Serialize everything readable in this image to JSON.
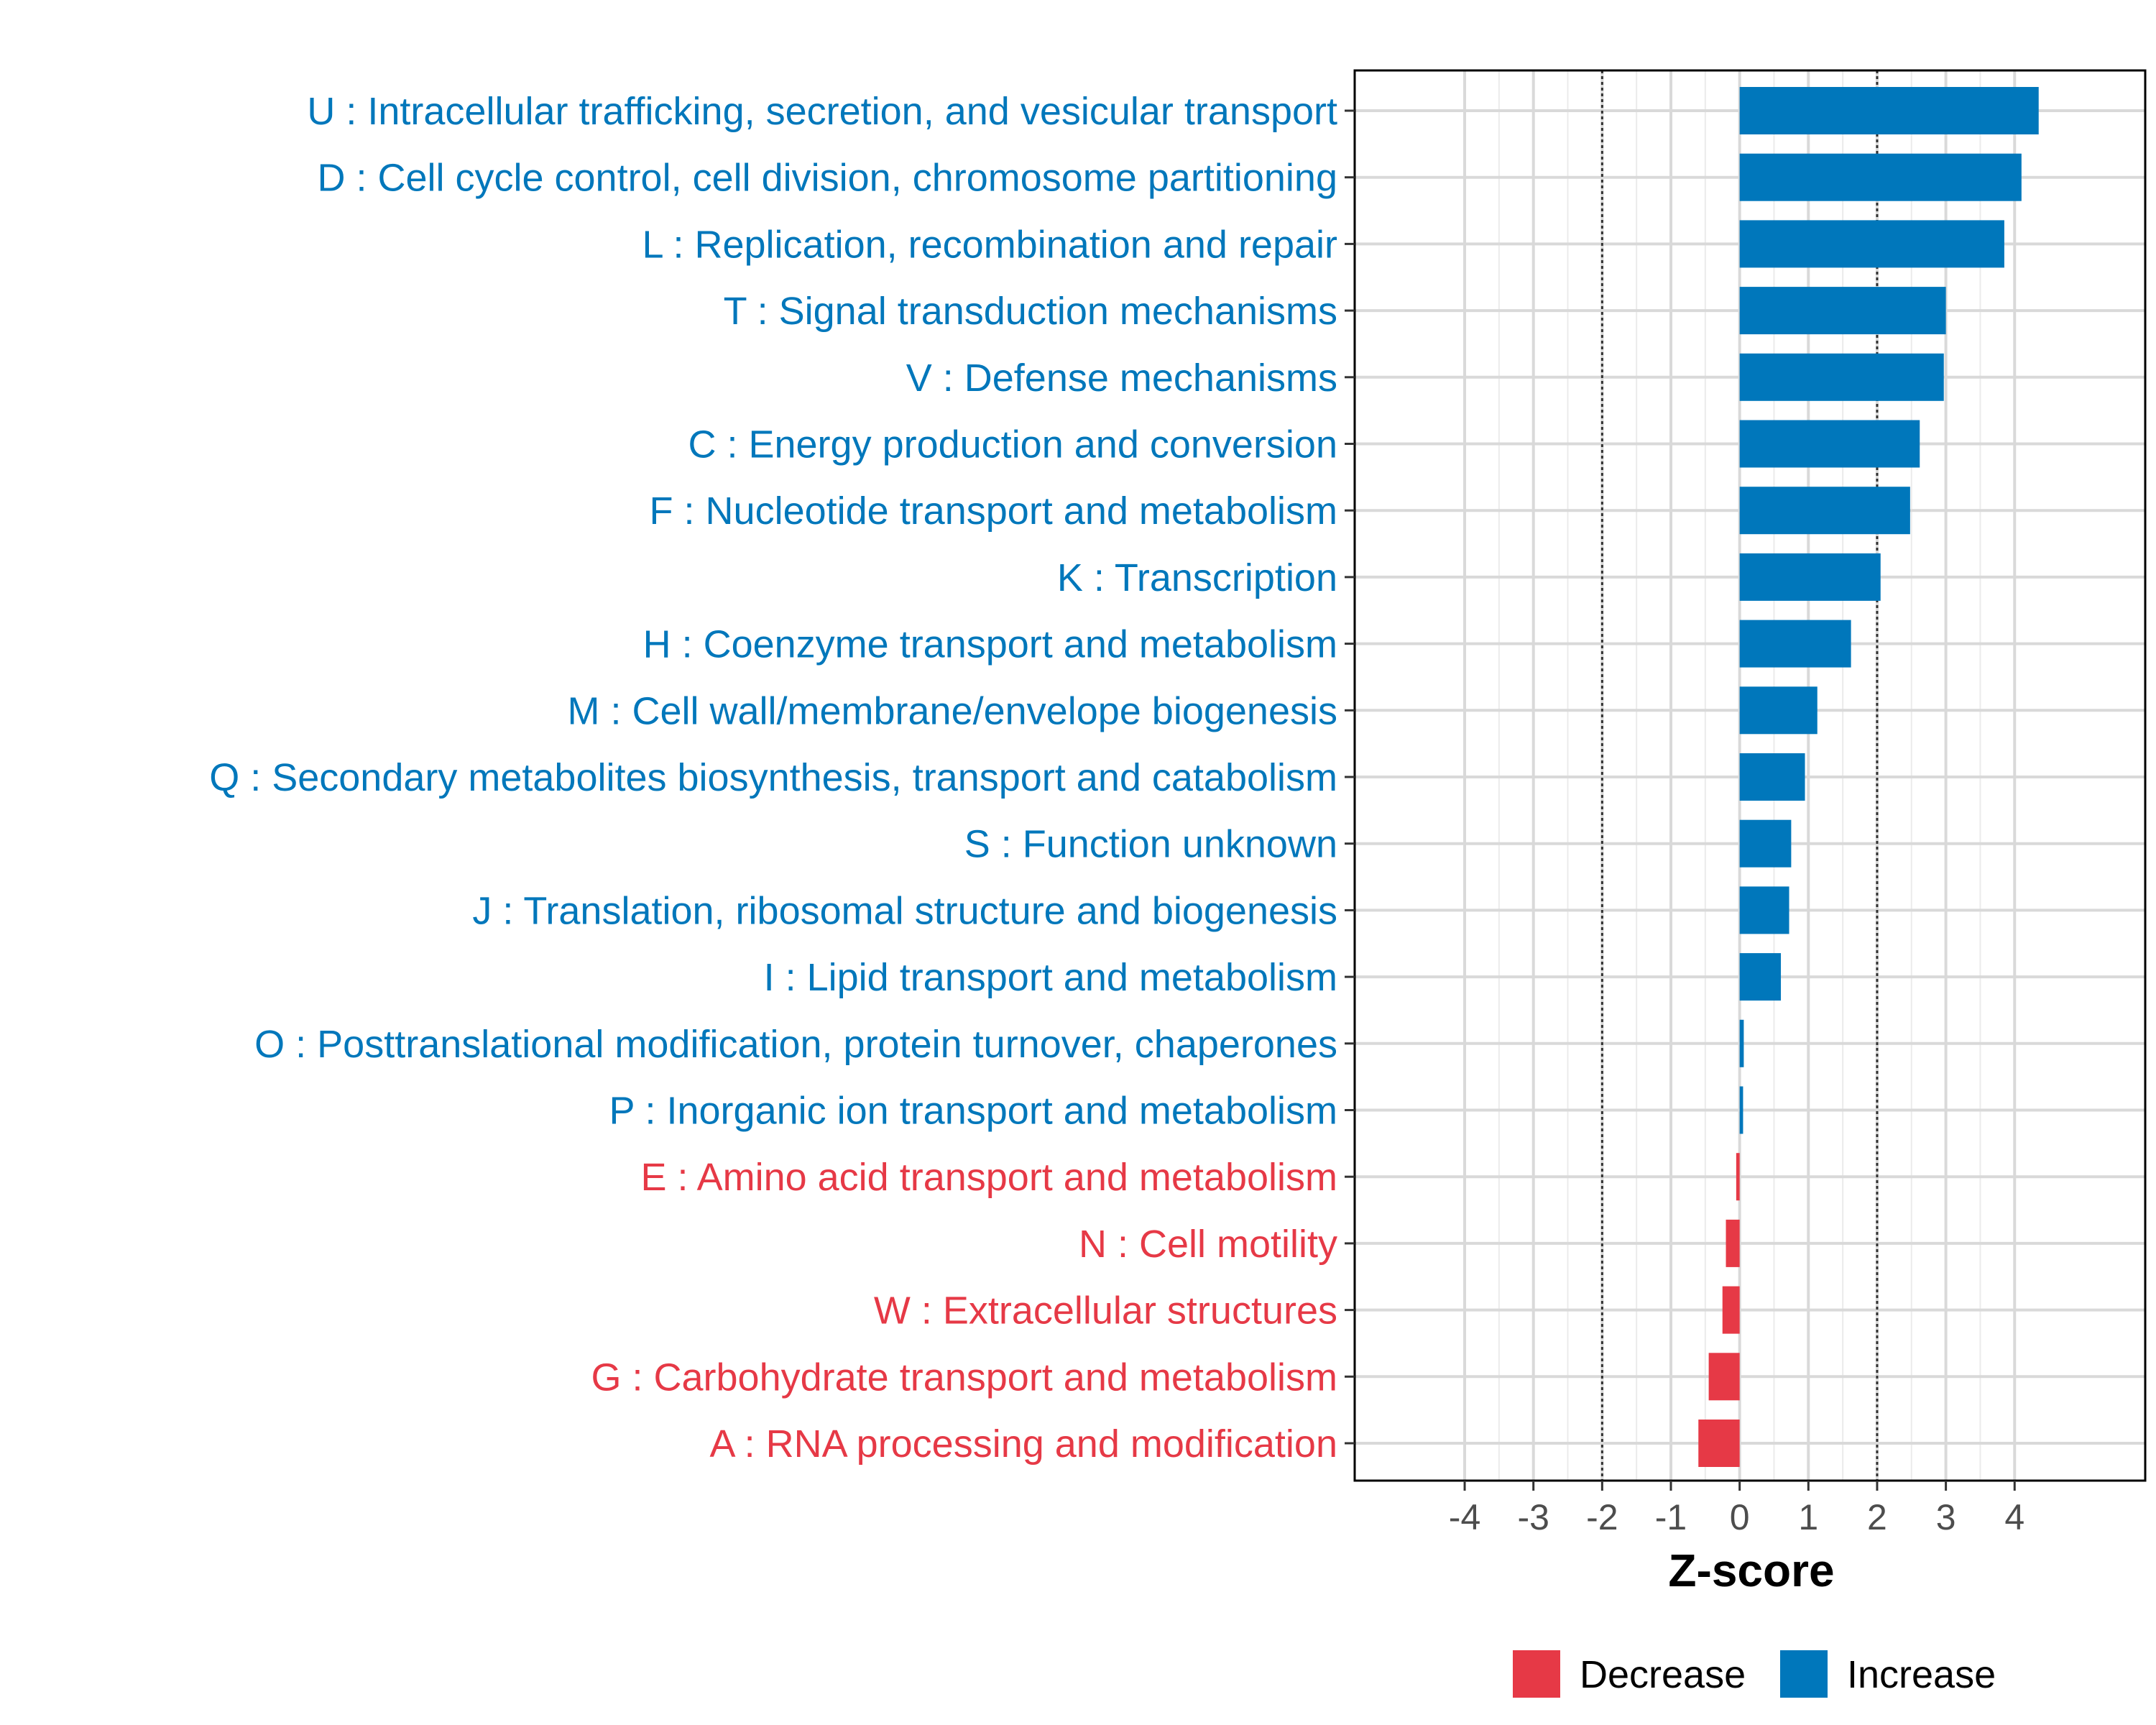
{
  "chart_data": {
    "type": "bar",
    "orientation": "horizontal",
    "xlabel": "Z-score",
    "xlim": [
      -5.6,
      5.9
    ],
    "x_ticks": [
      -4,
      -3,
      -2,
      -1,
      0,
      1,
      2,
      3,
      4
    ],
    "x_tick_labels": [
      "-4",
      "-3",
      "-2",
      "-1",
      "0",
      "1",
      "2",
      "3",
      "4"
    ],
    "reference_lines": [
      -2,
      2
    ],
    "grid": true,
    "colors": {
      "Increase": "#0077bb",
      "Decrease": "#e63946"
    },
    "legend": {
      "position": "bottom",
      "entries": [
        {
          "label": "Decrease",
          "color": "#e63946"
        },
        {
          "label": "Increase",
          "color": "#0077bb"
        }
      ]
    },
    "categories": [
      "U : Intracellular trafficking, secretion, and vesicular transport",
      "D : Cell cycle control, cell division, chromosome partitioning",
      "L : Replication, recombination and repair",
      "T : Signal transduction mechanisms",
      "V : Defense mechanisms",
      "C : Energy production and conversion",
      "F : Nucleotide transport and metabolism",
      "K : Transcription",
      "H : Coenzyme transport and metabolism",
      "M : Cell wall/membrane/envelope biogenesis",
      "Q : Secondary metabolites biosynthesis, transport and catabolism",
      "S : Function unknown",
      "J : Translation, ribosomal structure and biogenesis",
      "I : Lipid transport and metabolism",
      "O : Posttranslational modification, protein turnover, chaperones",
      "P : Inorganic ion transport and metabolism",
      "E : Amino acid transport and metabolism",
      "N : Cell motility",
      "W : Extracellular structures",
      "G : Carbohydrate transport and metabolism",
      "A : RNA processing and modification"
    ],
    "values": [
      4.35,
      4.1,
      3.85,
      3.0,
      2.97,
      2.62,
      2.48,
      2.05,
      1.62,
      1.13,
      0.95,
      0.75,
      0.72,
      0.6,
      0.06,
      0.05,
      -0.05,
      -0.2,
      -0.25,
      -0.45,
      -0.6
    ],
    "direction": [
      "Increase",
      "Increase",
      "Increase",
      "Increase",
      "Increase",
      "Increase",
      "Increase",
      "Increase",
      "Increase",
      "Increase",
      "Increase",
      "Increase",
      "Increase",
      "Increase",
      "Increase",
      "Increase",
      "Decrease",
      "Decrease",
      "Decrease",
      "Decrease",
      "Decrease"
    ]
  }
}
